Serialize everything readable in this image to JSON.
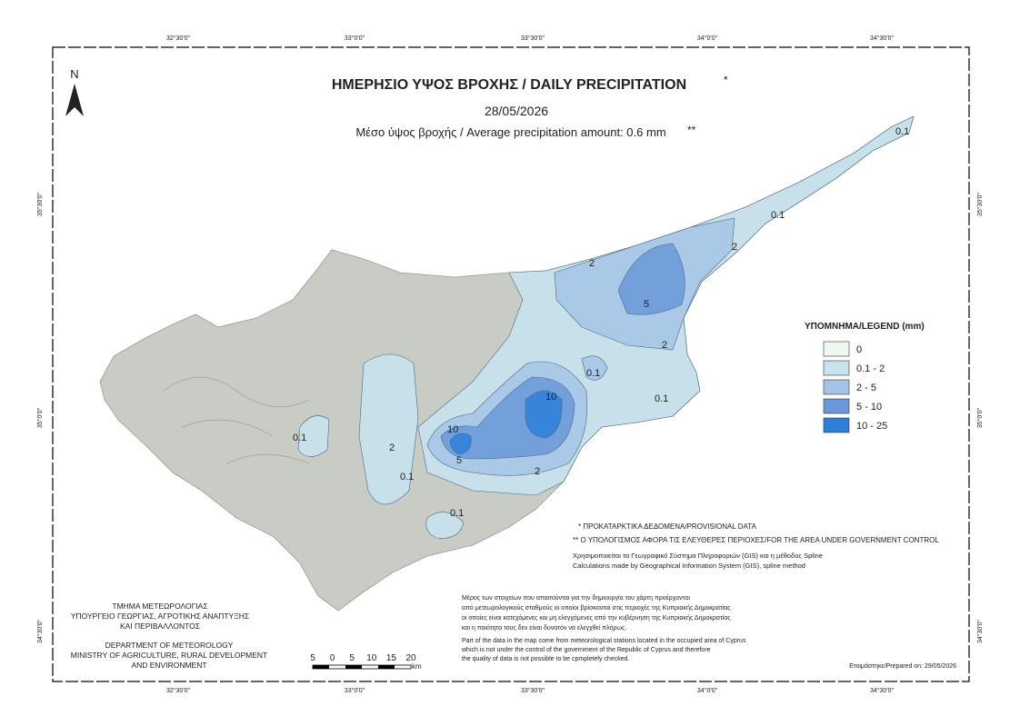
{
  "header": {
    "title": "ΗΜΕΡΗΣΙΟ ΥΨΟΣ ΒΡΟΧΗΣ / DAILY PRECIPITATION",
    "title_mark": "*",
    "date": "28/05/2026",
    "subtitle": "Μέσο ύψος βροχής / Average precipitation amount: 0.6 mm",
    "subtitle_mark": "**"
  },
  "north": "N",
  "coordinates": {
    "longitude": [
      "32°30'0\"",
      "33°0'0\"",
      "33°30'0\"",
      "34°0'0\"",
      "34°30'0\""
    ],
    "latitude": [
      "35°30'0\"",
      "35°0'0\"",
      "34°30'0\""
    ]
  },
  "contour_labels": [
    "0.1",
    "2",
    "5",
    "10"
  ],
  "legend": {
    "title": "ΥΠΟΜΝΗΜΑ/LEGEND (mm)",
    "items": [
      {
        "label": "0",
        "color": "#eef8ee"
      },
      {
        "label": "0.1 - 2",
        "color": "#c8e3ee"
      },
      {
        "label": "2 - 5",
        "color": "#a3c4e6"
      },
      {
        "label": "5 - 10",
        "color": "#6a98d8"
      },
      {
        "label": "10 - 25",
        "color": "#2d7fd9"
      }
    ]
  },
  "notes": [
    "* ΠΡΟΚΑΤΑΡΚΤΙΚΑ ΔΕΔΟΜΕΝΑ/PROVISIONAL DATA",
    "** Ο ΥΠΟΛΟΓΙΣΜΟΣ ΑΦΟΡΑ ΤΙΣ ΕΛΕΥΘΕΡΕΣ ΠΕΡΙΟΧΕΣ/FOR THE AREA UNDER GOVERNMENT CONTROL",
    "Χρησιμοποιείται τα Γεωγραφικό Σύστημα Πληροφοριών (GIS) και η μέθοδος Spline",
    "Calculations made by Geographical Information System (GIS), spline method"
  ],
  "disclaimer_greek": [
    "Μέρος των στοιχείων που απαιτούνται για την δημιουργία του χάρτη προέρχονται",
    "από μετεωρολογικούς σταθμούς οι οποίοι βρίσκονται στις περιοχές της Κυπριακής Δημοκρατίας",
    "οι οποίες είναι κατεχόμενες και μη ελεγχόμενες από την κυβέρνηση της Κυπριακής Δημοκρατίας",
    "και η ποιότητα τους δεν είναι δυνατόν να ελεγχθεί πλήρως."
  ],
  "disclaimer_english": [
    "Part of the data in the map come from meteorological stations located in the occupied area of Cyprus",
    "which is not under the control of the government of the Republic of Cyprus and therefore",
    "the quality of data is not possible to be cpmpletely checked."
  ],
  "department_greek": [
    "ΤΜΗΜΑ ΜΕΤΕΩΡΟΛΟΓΙΑΣ",
    "ΥΠΟΥΡΓΕΙΟ ΓΕΩΡΓΙΑΣ, ΑΓΡΟΤΙΚΗΣ ΑΝΑΠΤΥΞΗΣ",
    "ΚΑΙ ΠΕΡΙΒΑΛΛΟΝΤΟΣ"
  ],
  "department_english": [
    "DEPARTMENT OF METEOROLOGY",
    "MINISTRY OF AGRICULTURE, RURAL DEVELOPMENT",
    "AND ENVIRONMENT"
  ],
  "scale_bar": {
    "labels": [
      "5",
      "0",
      "5",
      "10",
      "15",
      "20"
    ],
    "unit": "km"
  },
  "prepared": "Ετοιμάστηκε/Prepared on: 29/05/2026"
}
